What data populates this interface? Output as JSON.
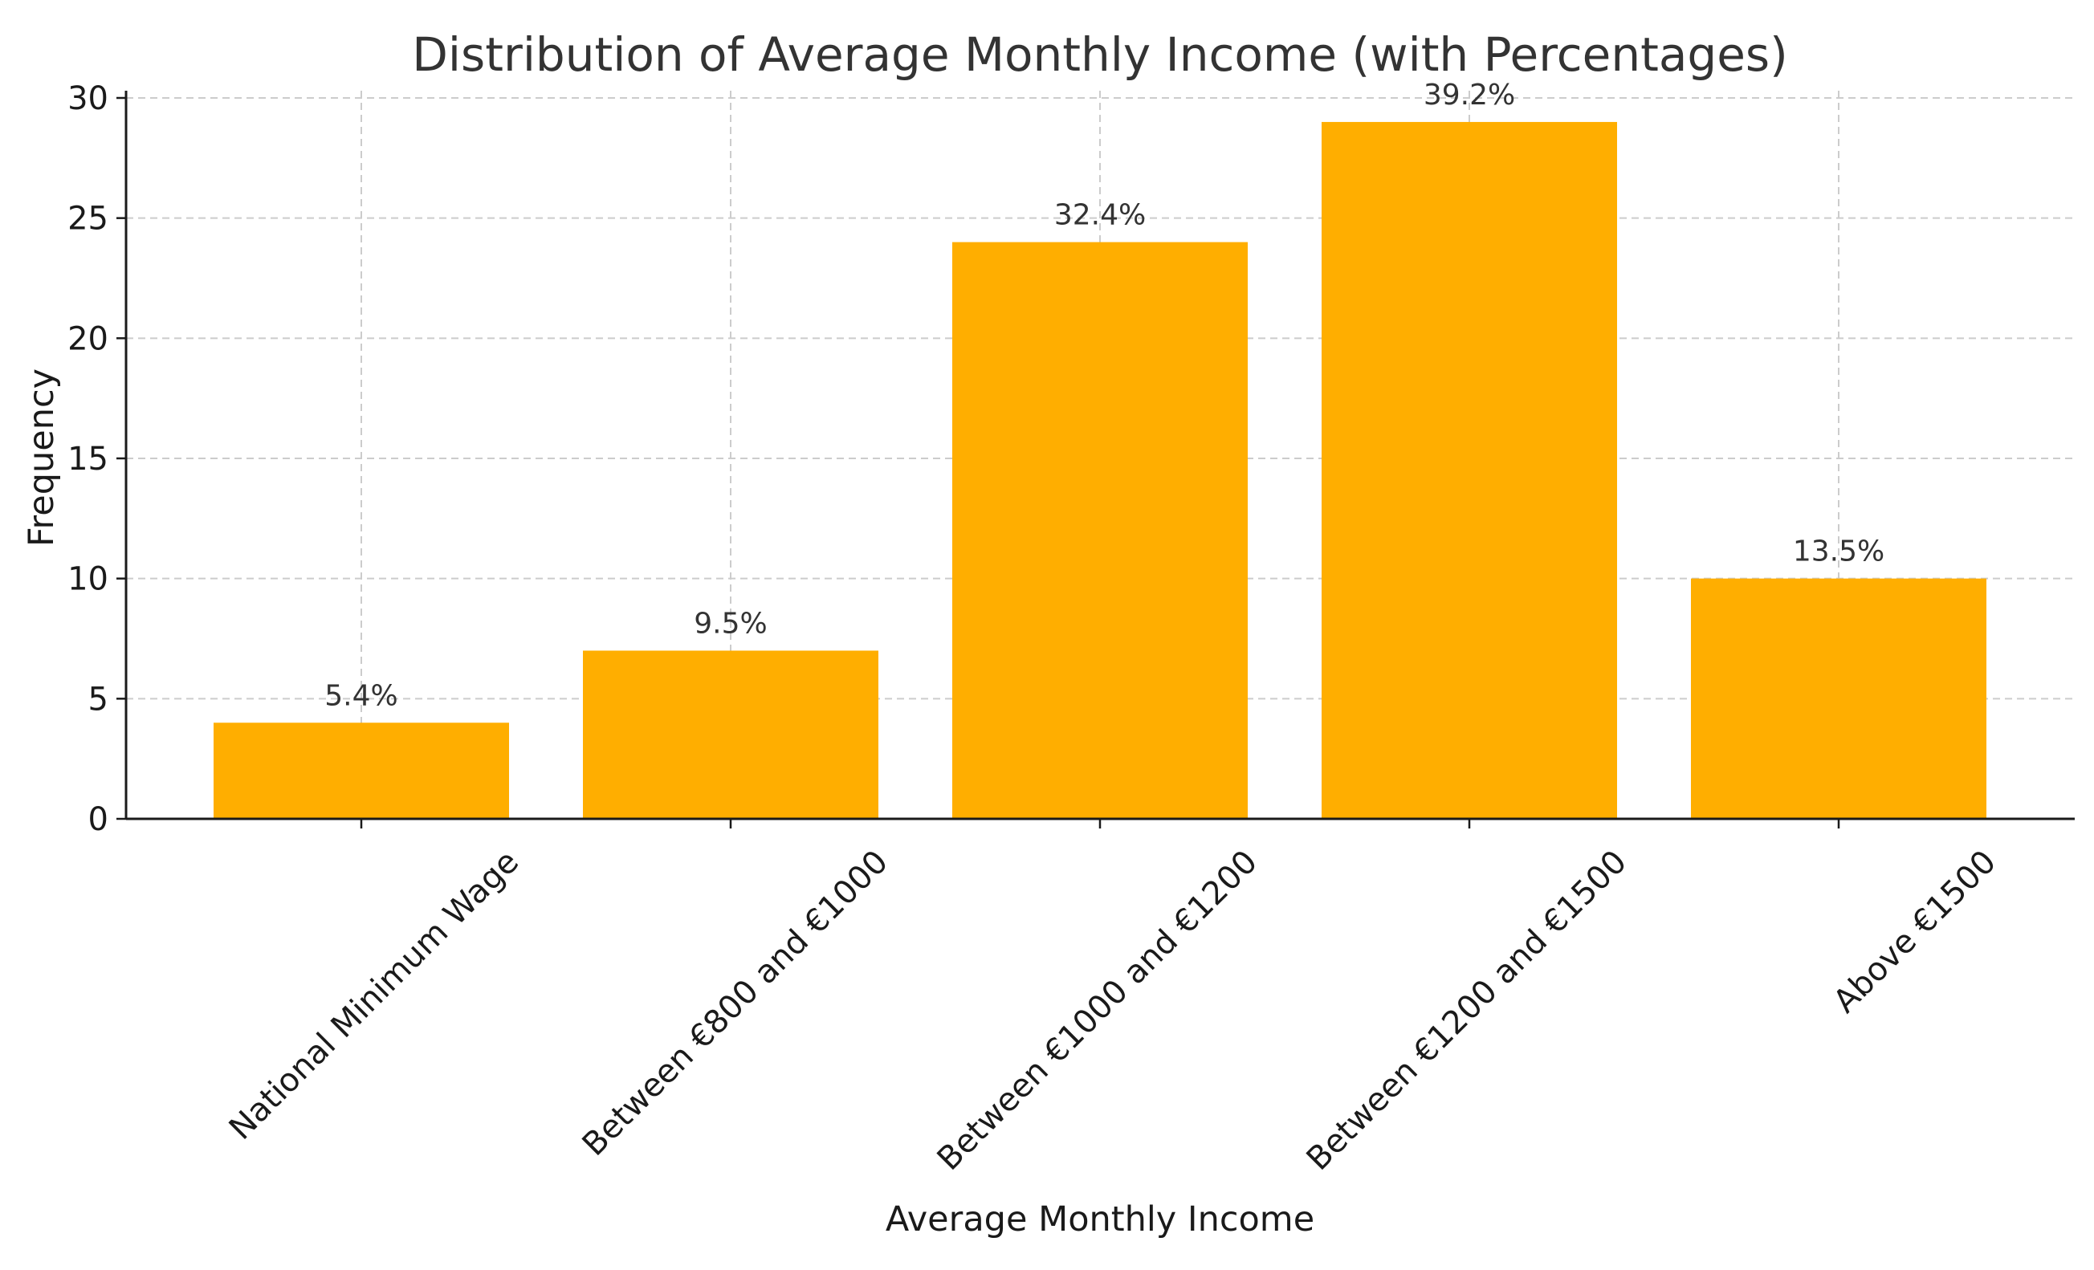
{
  "chart_data": {
    "type": "bar",
    "title": "Distribution of Average Monthly Income (with Percentages)",
    "xlabel": "Average Monthly Income",
    "ylabel": "Frequency",
    "categories": [
      "National Minimum Wage",
      "Between €800 and €1000",
      "Between €1000 and €1200",
      "Between €1200 and €1500",
      "Above €1500"
    ],
    "values": [
      4,
      7,
      24,
      29,
      10
    ],
    "data_labels": [
      "5.4%",
      "9.5%",
      "32.4%",
      "39.2%",
      "13.5%"
    ],
    "ylim": [
      0,
      30
    ],
    "yticks": [
      0,
      5,
      10,
      15,
      20,
      25,
      30
    ],
    "bar_color": "#FFAE00",
    "grid": true,
    "legend": "none"
  }
}
